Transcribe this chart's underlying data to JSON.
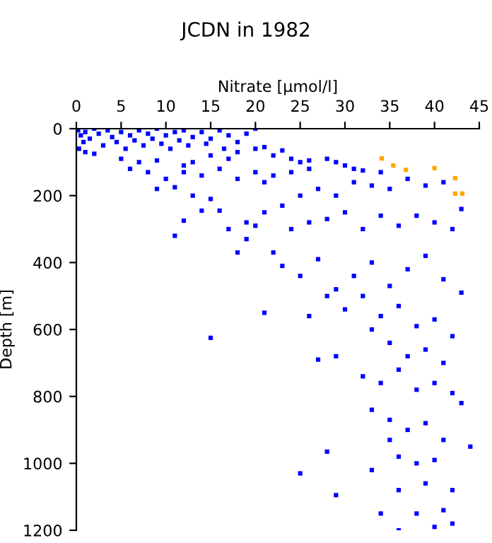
{
  "chart_data": {
    "type": "scatter",
    "title": "JCDN in 1982",
    "xlabel": "Nitrate [µmol/l]",
    "ylabel": "Depth [m]",
    "xlim": [
      0,
      45
    ],
    "xticks": [
      0,
      5,
      10,
      15,
      20,
      25,
      30,
      35,
      40,
      45
    ],
    "ylim": [
      1200,
      0
    ],
    "yticks": [
      0,
      200,
      400,
      600,
      800,
      1000,
      1200
    ],
    "marker": "square",
    "grid": false,
    "legend": false,
    "series": [
      {
        "color": "#0000ff",
        "x": [
          0.2,
          0.5,
          0.8,
          1,
          1.5,
          2,
          2.5,
          3,
          3.5,
          4,
          4.5,
          5,
          5.5,
          6,
          6.5,
          7,
          7.5,
          8,
          8.5,
          9,
          9.5,
          10,
          10.5,
          11,
          11.5,
          12,
          12.5,
          13,
          14,
          14.5,
          15,
          16,
          16.5,
          17,
          18,
          19,
          20,
          0.3,
          1,
          2,
          5,
          7,
          9,
          12,
          13,
          15,
          17,
          18,
          20,
          21,
          22,
          23,
          24,
          25,
          26,
          28,
          29,
          30,
          31,
          32,
          34,
          26,
          24,
          22,
          21,
          20,
          18,
          16,
          14,
          12,
          10,
          8,
          6,
          9,
          11,
          13,
          15,
          16,
          14,
          12,
          11,
          17,
          19,
          19,
          20,
          21,
          23,
          25,
          27,
          29,
          31,
          33,
          35,
          37,
          39,
          41,
          43,
          42,
          40,
          38,
          36,
          34,
          32,
          30,
          28,
          26,
          24,
          22,
          23,
          18,
          25,
          27,
          29,
          31,
          33,
          35,
          37,
          39,
          41,
          43,
          28,
          30,
          32,
          34,
          36,
          38,
          40,
          42,
          33,
          35,
          37,
          39,
          41,
          27,
          29,
          21,
          26,
          15,
          32,
          34,
          36,
          38,
          40,
          42,
          43,
          33,
          35,
          37,
          39,
          41,
          44,
          28,
          35,
          36,
          38,
          40,
          33,
          36,
          39,
          42,
          25,
          29,
          34,
          38,
          41,
          36,
          40,
          42
        ],
        "values": [
          5,
          20,
          40,
          10,
          30,
          0,
          15,
          50,
          5,
          25,
          40,
          10,
          60,
          20,
          35,
          5,
          50,
          15,
          30,
          0,
          45,
          20,
          60,
          10,
          35,
          5,
          50,
          25,
          10,
          45,
          30,
          5,
          60,
          20,
          40,
          15,
          0,
          60,
          70,
          75,
          90,
          100,
          95,
          110,
          100,
          80,
          90,
          70,
          60,
          55,
          80,
          65,
          90,
          100,
          95,
          90,
          100,
          110,
          120,
          125,
          130,
          120,
          130,
          140,
          160,
          130,
          150,
          120,
          140,
          130,
          150,
          130,
          120,
          180,
          175,
          200,
          210,
          245,
          245,
          275,
          320,
          300,
          280,
          330,
          290,
          250,
          230,
          200,
          180,
          200,
          160,
          170,
          180,
          150,
          170,
          160,
          240,
          300,
          280,
          260,
          290,
          260,
          300,
          250,
          270,
          280,
          300,
          370,
          410,
          370,
          440,
          390,
          480,
          440,
          400,
          470,
          420,
          380,
          450,
          490,
          500,
          540,
          500,
          560,
          530,
          590,
          570,
          620,
          600,
          640,
          680,
          660,
          700,
          690,
          680,
          550,
          560,
          625,
          740,
          760,
          720,
          780,
          760,
          790,
          820,
          840,
          870,
          900,
          880,
          930,
          950,
          965,
          930,
          980,
          1000,
          990,
          1020,
          1080,
          1060,
          1080,
          1030,
          1095,
          1150,
          1150,
          1140,
          1200,
          1190,
          1180
        ]
      },
      {
        "color": "#ffa500",
        "x": [
          34.1,
          35.4,
          36.8,
          40,
          42.3,
          42.3,
          43.1
        ],
        "values": [
          89,
          110,
          123,
          118,
          148,
          194,
          194
        ]
      }
    ]
  }
}
